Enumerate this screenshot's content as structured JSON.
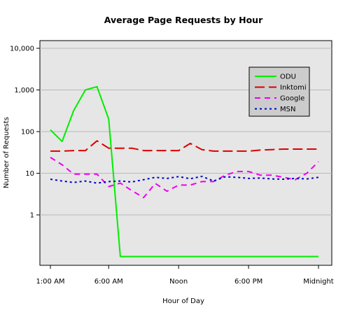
{
  "chart_data": {
    "type": "line",
    "title": "Average Page Requests by Hour",
    "xlabel": "Hour of Day",
    "ylabel": "Number of Requests",
    "y_scale": "log",
    "ylim": [
      0.06,
      15000
    ],
    "xlim": [
      0,
      23
    ],
    "x_ticks": [
      {
        "value": 0,
        "label": "1:00 AM"
      },
      {
        "value": 5,
        "label": "6:00 AM"
      },
      {
        "value": 11,
        "label": "Noon"
      },
      {
        "value": 17,
        "label": "6:00 PM"
      },
      {
        "value": 23,
        "label": "Midnight"
      }
    ],
    "y_ticks": [
      {
        "value": 1,
        "label": "1"
      },
      {
        "value": 10,
        "label": "10"
      },
      {
        "value": 100,
        "label": "100"
      },
      {
        "value": 1000,
        "label": "1,000"
      },
      {
        "value": 10000,
        "label": "10,000"
      }
    ],
    "grid": true,
    "legend_position": "top-right",
    "x": [
      0,
      1,
      2,
      3,
      4,
      5,
      6,
      7,
      8,
      9,
      10,
      11,
      12,
      13,
      14,
      15,
      16,
      17,
      18,
      19,
      20,
      21,
      22,
      23
    ],
    "series": [
      {
        "name": "ODU",
        "color": "#00ee00",
        "dash": "solid",
        "values": [
          110,
          58,
          320,
          1000,
          1200,
          200,
          0.1,
          0.1,
          0.1,
          0.1,
          0.1,
          0.1,
          0.1,
          0.1,
          0.1,
          0.1,
          0.1,
          0.1,
          0.1,
          0.1,
          0.1,
          0.1,
          0.1,
          0.1
        ]
      },
      {
        "name": "Inktomi",
        "color": "#dd0000",
        "dash": "longdash",
        "values": [
          34,
          34,
          35,
          35,
          60,
          40,
          40,
          40,
          35,
          35,
          35,
          35,
          52,
          37,
          34,
          34,
          34,
          34,
          36,
          37,
          38,
          38,
          38,
          38
        ]
      },
      {
        "name": "Google",
        "color": "#ee00ee",
        "dash": "dash",
        "values": [
          24,
          16,
          9.5,
          9.5,
          9.5,
          4.8,
          5.8,
          3.8,
          2.6,
          5.7,
          3.7,
          5.2,
          5.2,
          6.3,
          6.3,
          9,
          11,
          11,
          9,
          9,
          8,
          7,
          10,
          19
        ]
      },
      {
        "name": "MSN",
        "color": "#0000cc",
        "dash": "dot",
        "values": [
          7.2,
          6.5,
          6,
          6.5,
          5.8,
          6.3,
          6.5,
          6.2,
          7,
          8,
          7.5,
          8.3,
          7.4,
          8.4,
          6.5,
          8.2,
          8,
          7.5,
          7.7,
          7.3,
          7.2,
          7.5,
          7.3,
          8
        ]
      }
    ]
  }
}
